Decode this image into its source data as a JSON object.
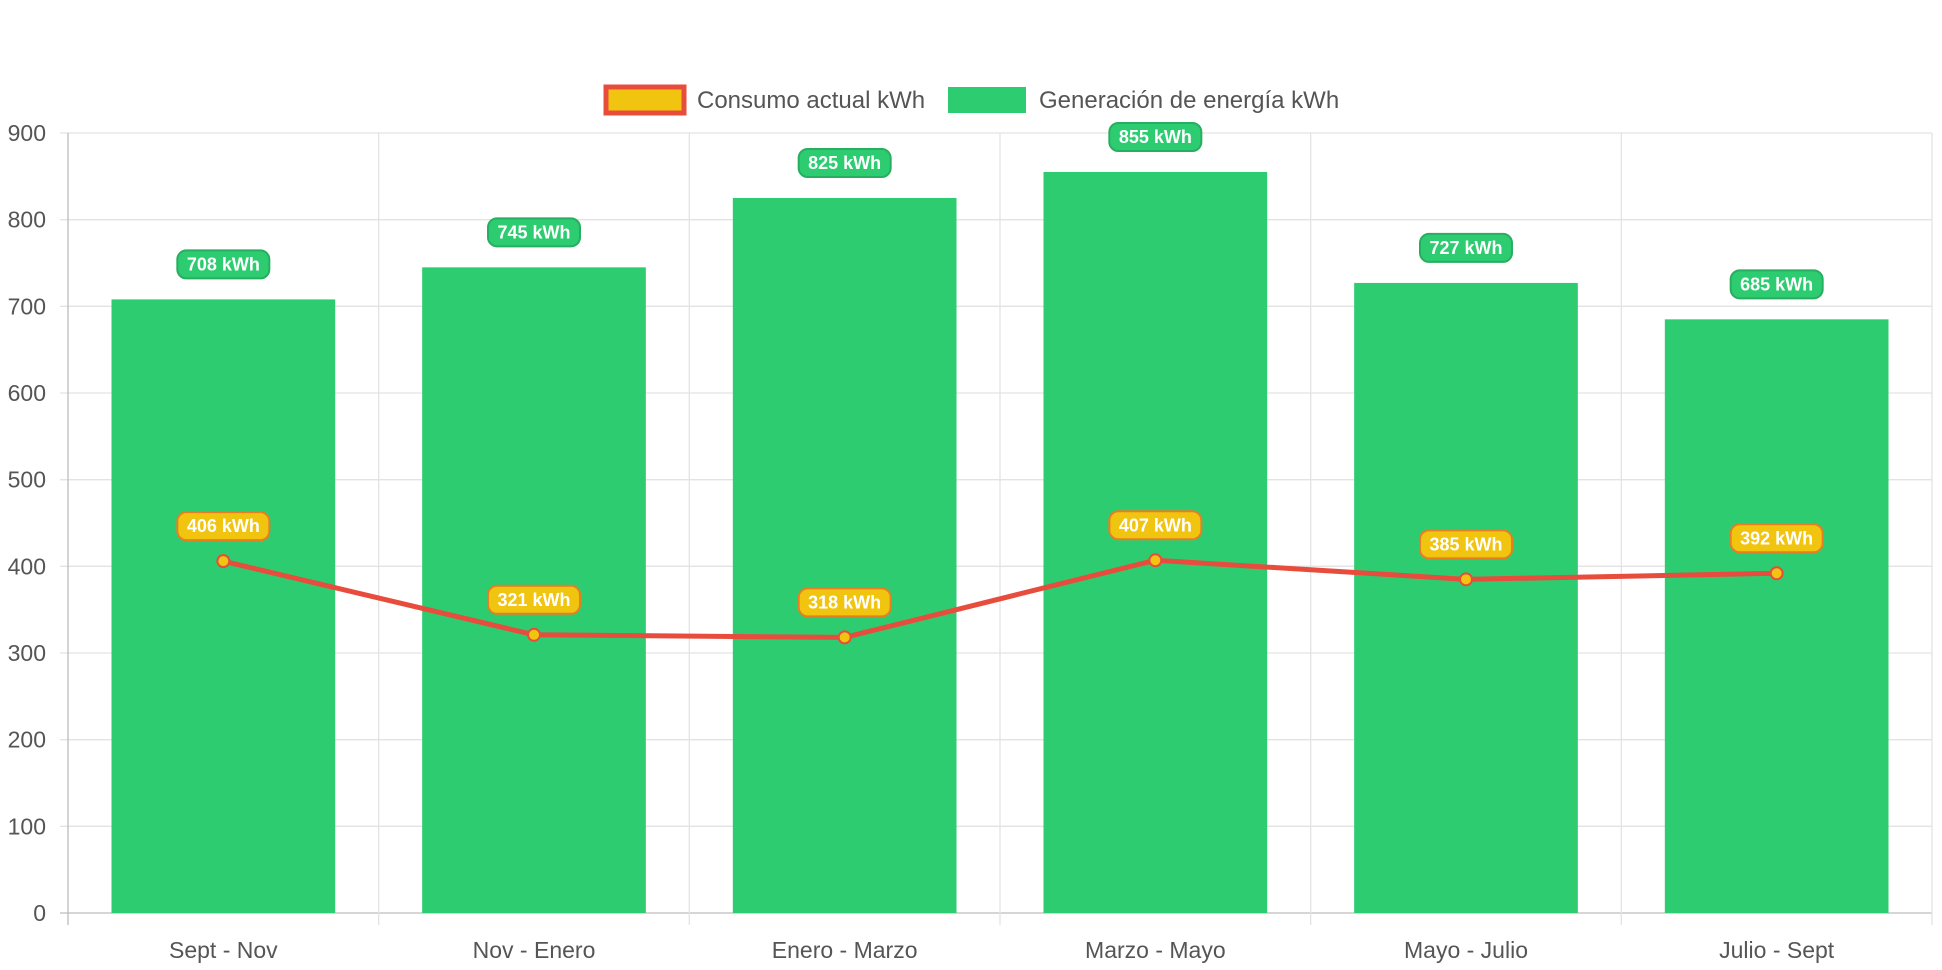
{
  "chart_data": {
    "type": "bar",
    "categories": [
      "Sept - Nov",
      "Nov - Enero",
      "Enero - Marzo",
      "Marzo - Mayo",
      "Mayo - Julio",
      "Julio - Sept"
    ],
    "series": [
      {
        "name": "Consumo actual kWh",
        "type": "line",
        "values": [
          406,
          321,
          318,
          407,
          385,
          392
        ],
        "color": "#e74c3c",
        "fill": "#f1c40f",
        "labels": [
          "406 kWh",
          "321 kWh",
          "318 kWh",
          "407 kWh",
          "385 kWh",
          "392 kWh"
        ]
      },
      {
        "name": "Generación de energía kWh",
        "type": "bar",
        "values": [
          708,
          745,
          825,
          855,
          727,
          685
        ],
        "color": "#2ecc71",
        "labels": [
          "708 kWh",
          "745 kWh",
          "825 kWh",
          "855 kWh",
          "727 kWh",
          "685 kWh"
        ]
      }
    ],
    "ylim": [
      0,
      900
    ],
    "yticks": [
      "0",
      "100",
      "200",
      "300",
      "400",
      "500",
      "600",
      "700",
      "800",
      "900"
    ],
    "grid": true,
    "legend_position": "top-center",
    "title": "",
    "xlabel": "",
    "ylabel": ""
  }
}
